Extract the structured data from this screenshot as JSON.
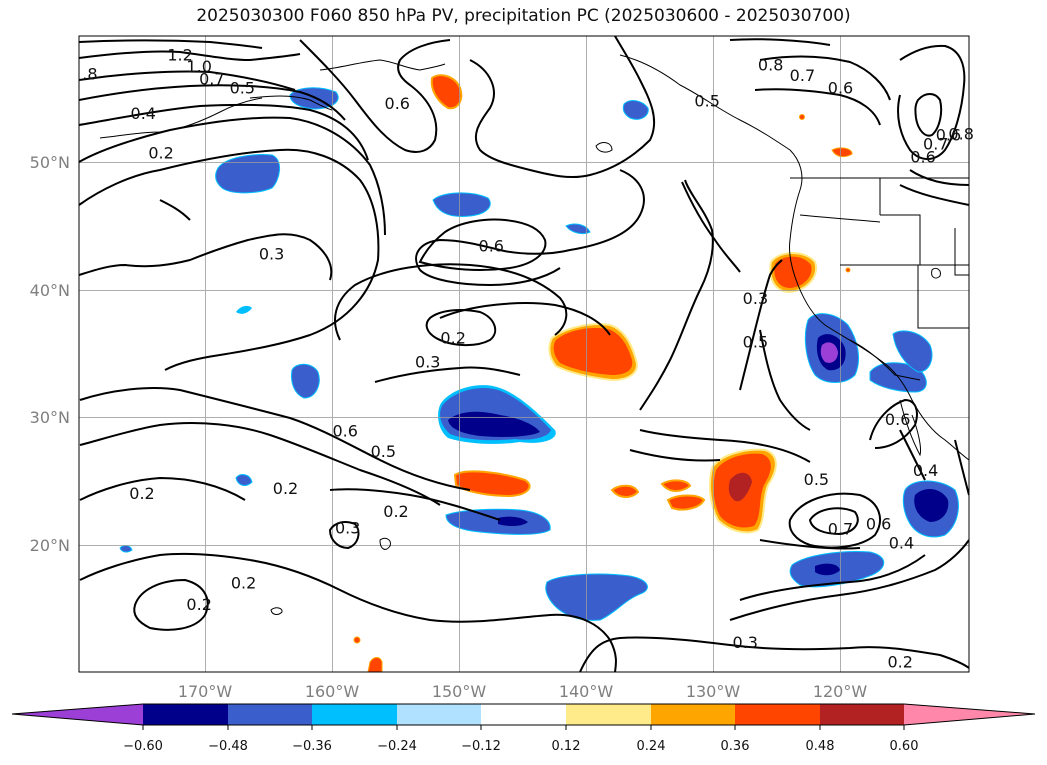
{
  "title": "2025030300 F060 850 hPa PV, precipitation PC (2025030600 - 2025030700)",
  "axes": {
    "lat_labels": [
      "50°N",
      "40°N",
      "30°N",
      "20°N"
    ],
    "lon_labels": [
      "170°W",
      "160°W",
      "150°W",
      "140°W",
      "130°W",
      "120°W"
    ],
    "label_color": "#7f7f7f",
    "gridlines": true
  },
  "colorbar": {
    "ticks": [
      "−0.60",
      "−0.48",
      "−0.36",
      "−0.24",
      "−0.12",
      "0.12",
      "0.24",
      "0.36",
      "0.48",
      "0.60"
    ],
    "colors": [
      "#9b3fd6",
      "#00008b",
      "#3a5fcd",
      "#00bfff",
      "#b0e2ff",
      "#ffffff",
      "#ffeb8a",
      "#ffa500",
      "#ff4500",
      "#b22222",
      "#ff88aa"
    ],
    "extend": "both"
  },
  "contour_labels": [
    {
      "text": "1.2",
      "lon": -172,
      "lat": 58.4
    },
    {
      "text": "1.0",
      "lon": -170.5,
      "lat": 57.5
    },
    {
      "text": ".8",
      "lon": -179.1,
      "lat": 56.9
    },
    {
      "text": "0.7",
      "lon": -169.5,
      "lat": 56.5
    },
    {
      "text": "0.5",
      "lon": -167.1,
      "lat": 55.8
    },
    {
      "text": "0.4",
      "lon": -174.9,
      "lat": 53.8
    },
    {
      "text": "0.2",
      "lon": -173.5,
      "lat": 50.7
    },
    {
      "text": "0.6",
      "lon": -154.9,
      "lat": 54.6
    },
    {
      "text": "0.8",
      "lon": -125.5,
      "lat": 57.6
    },
    {
      "text": "0.7",
      "lon": -123,
      "lat": 56.8
    },
    {
      "text": "0.6",
      "lon": -120,
      "lat": 55.8
    },
    {
      "text": "0.5",
      "lon": -130.5,
      "lat": 54.8
    },
    {
      "text": "0.6",
      "lon": -111.5,
      "lat": 52.1
    },
    {
      "text": "0.8",
      "lon": -110.5,
      "lat": 52.2
    },
    {
      "text": "0.7",
      "lon": -112.5,
      "lat": 51.4
    },
    {
      "text": "0.6",
      "lon": -113.5,
      "lat": 50.4
    },
    {
      "text": "0.3",
      "lon": -164.8,
      "lat": 42.8
    },
    {
      "text": "0.6",
      "lon": -147.5,
      "lat": 43.4
    },
    {
      "text": "0.3",
      "lon": -126.7,
      "lat": 39.3
    },
    {
      "text": "0.5",
      "lon": -126.7,
      "lat": 35.9
    },
    {
      "text": "0.2",
      "lon": -150.5,
      "lat": 36.2
    },
    {
      "text": "0.3",
      "lon": -152.5,
      "lat": 34.3
    },
    {
      "text": "0.6",
      "lon": -159,
      "lat": 28.9
    },
    {
      "text": "0.5",
      "lon": -156,
      "lat": 27.3
    },
    {
      "text": "0.6",
      "lon": -115.5,
      "lat": 29.8
    },
    {
      "text": "0.5",
      "lon": -121.9,
      "lat": 25.1
    },
    {
      "text": "0.7",
      "lon": -120,
      "lat": 21.2
    },
    {
      "text": "0.6",
      "lon": -117,
      "lat": 21.6
    },
    {
      "text": "0.4",
      "lon": -115.2,
      "lat": 20.1
    },
    {
      "text": "0.4",
      "lon": -113.3,
      "lat": 25.8
    },
    {
      "text": "0.2",
      "lon": -175,
      "lat": 24
    },
    {
      "text": "0.2",
      "lon": -163.7,
      "lat": 24.4
    },
    {
      "text": "0.2",
      "lon": -155,
      "lat": 22.6
    },
    {
      "text": "0.3",
      "lon": -158.8,
      "lat": 21.3
    },
    {
      "text": "0.2",
      "lon": -170.5,
      "lat": 15.3
    },
    {
      "text": "0.2",
      "lon": -167,
      "lat": 17
    },
    {
      "text": "0.3",
      "lon": -127.5,
      "lat": 12.3
    },
    {
      "text": "0.2",
      "lon": -115.3,
      "lat": 10.8
    }
  ]
}
